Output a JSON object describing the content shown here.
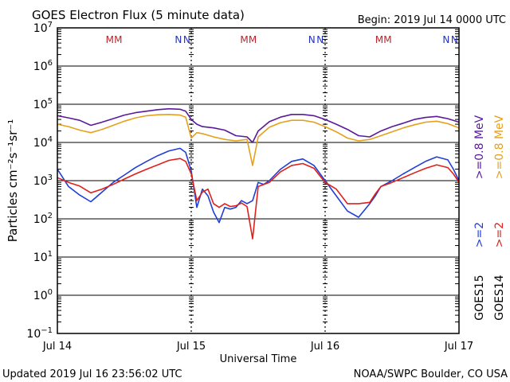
{
  "header": {
    "title": "GOES Electron Flux (5 minute data)",
    "begin": "Begin: 2019 Jul 14 0000 UTC"
  },
  "footer": {
    "updated": "Updated 2019 Jul 16 23:56:02 UTC",
    "credit": "NOAA/SWPC Boulder, CO USA"
  },
  "colors": {
    "goes15_ge2": "#1f3fd8",
    "goes14_ge2": "#e0201a",
    "goes15_ge08": "#5a1a9a",
    "goes14_ge08": "#e6a01a",
    "marker_m": "#c0202a",
    "marker_n": "#2030c8"
  },
  "chart_data": {
    "type": "line",
    "yscale": "log",
    "ylim": [
      0.1,
      10000000
    ],
    "xlim": [
      0,
      72
    ],
    "ylabel": "Particles cm⁻²s⁻¹sr⁻¹",
    "xlabel": "Universal Time",
    "x_ticks": [
      {
        "x": 0,
        "label": "Jul 14"
      },
      {
        "x": 24,
        "label": "Jul 15"
      },
      {
        "x": 48,
        "label": "Jul 16"
      },
      {
        "x": 72,
        "label": "Jul 17"
      }
    ],
    "y_ticks": [
      {
        "base": "10",
        "exp": "7",
        "value": 10000000
      },
      {
        "base": "10",
        "exp": "6",
        "value": 1000000
      },
      {
        "base": "10",
        "exp": "5",
        "value": 100000
      },
      {
        "base": "10",
        "exp": "4",
        "value": 10000
      },
      {
        "base": "10",
        "exp": "3",
        "value": 1000
      },
      {
        "base": "10",
        "exp": "2",
        "value": 100
      },
      {
        "base": "10",
        "exp": "1",
        "value": 10
      },
      {
        "base": "10",
        "exp": "0",
        "value": 1
      },
      {
        "base": "10",
        "exp": "−1",
        "value": 0.1
      }
    ],
    "threshold": 1000,
    "markers": [
      {
        "x": 9.4,
        "label": "M"
      },
      {
        "x": 10.9,
        "label": "M"
      },
      {
        "x": 21.7,
        "label": "N"
      },
      {
        "x": 23.2,
        "label": "N"
      },
      {
        "x": 33.5,
        "label": "M"
      },
      {
        "x": 35.0,
        "label": "M"
      },
      {
        "x": 45.6,
        "label": "N"
      },
      {
        "x": 47.1,
        "label": "N"
      },
      {
        "x": 57.7,
        "label": "M"
      },
      {
        "x": 59.2,
        "label": "M"
      },
      {
        "x": 69.7,
        "label": "N"
      },
      {
        "x": 71.2,
        "label": "N"
      }
    ],
    "legend_right": [
      {
        "text": ">=0.8 MeV",
        "color": "#e6a01a"
      },
      {
        "text": ">=0.8 MeV",
        "color": "#5a1a9a"
      },
      {
        "text": ">=2",
        "color": "#e0201a"
      },
      {
        "text": ">=2",
        "color": "#1f3fd8"
      },
      {
        "text": "GOES14",
        "color": "#000000"
      },
      {
        "text": "GOES15",
        "color": "#000000"
      }
    ],
    "series": [
      {
        "color": "#1f3fd8",
        "points": [
          [
            0,
            2000
          ],
          [
            2,
            700
          ],
          [
            4,
            420
          ],
          [
            6,
            280
          ],
          [
            8,
            500
          ],
          [
            10,
            900
          ],
          [
            12,
            1400
          ],
          [
            14,
            2200
          ],
          [
            16,
            3200
          ],
          [
            18,
            4500
          ],
          [
            20,
            6000
          ],
          [
            22,
            7000
          ],
          [
            23,
            5500
          ],
          [
            24,
            1800
          ],
          [
            25,
            200
          ],
          [
            26,
            600
          ],
          [
            27,
            400
          ],
          [
            28,
            150
          ],
          [
            29,
            80
          ],
          [
            30,
            200
          ],
          [
            31,
            180
          ],
          [
            32,
            200
          ],
          [
            33,
            300
          ],
          [
            34,
            250
          ],
          [
            35,
            300
          ],
          [
            36,
            900
          ],
          [
            37,
            800
          ],
          [
            38,
            1000
          ],
          [
            40,
            2000
          ],
          [
            42,
            3200
          ],
          [
            44,
            3700
          ],
          [
            46,
            2500
          ],
          [
            48,
            1000
          ],
          [
            50,
            400
          ],
          [
            52,
            160
          ],
          [
            54,
            110
          ],
          [
            56,
            250
          ],
          [
            57,
            400
          ],
          [
            58,
            700
          ],
          [
            60,
            1000
          ],
          [
            62,
            1500
          ],
          [
            64,
            2200
          ],
          [
            66,
            3200
          ],
          [
            68,
            4200
          ],
          [
            70,
            3500
          ],
          [
            71,
            2000
          ],
          [
            72,
            1000
          ]
        ]
      },
      {
        "color": "#e0201a",
        "points": [
          [
            0,
            1200
          ],
          [
            2,
            900
          ],
          [
            4,
            720
          ],
          [
            6,
            480
          ],
          [
            8,
            600
          ],
          [
            10,
            800
          ],
          [
            12,
            1100
          ],
          [
            14,
            1500
          ],
          [
            16,
            2000
          ],
          [
            18,
            2600
          ],
          [
            20,
            3400
          ],
          [
            22,
            3800
          ],
          [
            23,
            3200
          ],
          [
            24,
            1500
          ],
          [
            25,
            300
          ],
          [
            26,
            500
          ],
          [
            27,
            600
          ],
          [
            28,
            250
          ],
          [
            29,
            200
          ],
          [
            30,
            250
          ],
          [
            31,
            210
          ],
          [
            32,
            220
          ],
          [
            33,
            260
          ],
          [
            34,
            210
          ],
          [
            35,
            30
          ],
          [
            36,
            700
          ],
          [
            37,
            800
          ],
          [
            38,
            900
          ],
          [
            40,
            1700
          ],
          [
            42,
            2500
          ],
          [
            44,
            2800
          ],
          [
            46,
            2100
          ],
          [
            48,
            900
          ],
          [
            50,
            600
          ],
          [
            52,
            250
          ],
          [
            54,
            250
          ],
          [
            56,
            270
          ],
          [
            57,
            450
          ],
          [
            58,
            700
          ],
          [
            60,
            900
          ],
          [
            62,
            1200
          ],
          [
            64,
            1600
          ],
          [
            66,
            2100
          ],
          [
            68,
            2600
          ],
          [
            70,
            2200
          ],
          [
            71,
            1500
          ],
          [
            72,
            900
          ]
        ]
      },
      {
        "color": "#5a1a9a",
        "points": [
          [
            0,
            50000
          ],
          [
            2,
            44000
          ],
          [
            4,
            38000
          ],
          [
            6,
            28000
          ],
          [
            8,
            34000
          ],
          [
            10,
            42000
          ],
          [
            12,
            52000
          ],
          [
            14,
            60000
          ],
          [
            16,
            66000
          ],
          [
            18,
            72000
          ],
          [
            20,
            76000
          ],
          [
            22,
            74000
          ],
          [
            23,
            66000
          ],
          [
            24,
            40000
          ],
          [
            25,
            30000
          ],
          [
            26,
            26000
          ],
          [
            28,
            24000
          ],
          [
            30,
            21000
          ],
          [
            32,
            15000
          ],
          [
            34,
            14000
          ],
          [
            35,
            10000
          ],
          [
            36,
            20000
          ],
          [
            38,
            35000
          ],
          [
            40,
            46000
          ],
          [
            42,
            54000
          ],
          [
            44,
            54000
          ],
          [
            46,
            50000
          ],
          [
            48,
            40000
          ],
          [
            50,
            30000
          ],
          [
            52,
            22000
          ],
          [
            54,
            15000
          ],
          [
            56,
            14000
          ],
          [
            58,
            20000
          ],
          [
            60,
            26000
          ],
          [
            62,
            32000
          ],
          [
            64,
            40000
          ],
          [
            66,
            45000
          ],
          [
            68,
            48000
          ],
          [
            70,
            42000
          ],
          [
            72,
            34000
          ]
        ]
      },
      {
        "color": "#e6a01a",
        "points": [
          [
            0,
            30000
          ],
          [
            2,
            26000
          ],
          [
            4,
            21000
          ],
          [
            6,
            18000
          ],
          [
            8,
            22000
          ],
          [
            10,
            28000
          ],
          [
            12,
            36000
          ],
          [
            14,
            44000
          ],
          [
            16,
            50000
          ],
          [
            18,
            53000
          ],
          [
            20,
            54000
          ],
          [
            22,
            52000
          ],
          [
            23,
            46000
          ],
          [
            24,
            13000
          ],
          [
            25,
            18000
          ],
          [
            26,
            17000
          ],
          [
            28,
            14000
          ],
          [
            30,
            12000
          ],
          [
            32,
            11000
          ],
          [
            34,
            12000
          ],
          [
            35,
            2500
          ],
          [
            36,
            14000
          ],
          [
            38,
            25000
          ],
          [
            40,
            33000
          ],
          [
            42,
            38000
          ],
          [
            44,
            38000
          ],
          [
            46,
            34000
          ],
          [
            48,
            26000
          ],
          [
            50,
            19000
          ],
          [
            52,
            13000
          ],
          [
            54,
            11000
          ],
          [
            56,
            12000
          ],
          [
            58,
            15000
          ],
          [
            60,
            19000
          ],
          [
            62,
            24000
          ],
          [
            64,
            29000
          ],
          [
            66,
            34000
          ],
          [
            68,
            36000
          ],
          [
            70,
            31000
          ],
          [
            72,
            24000
          ]
        ]
      }
    ]
  }
}
